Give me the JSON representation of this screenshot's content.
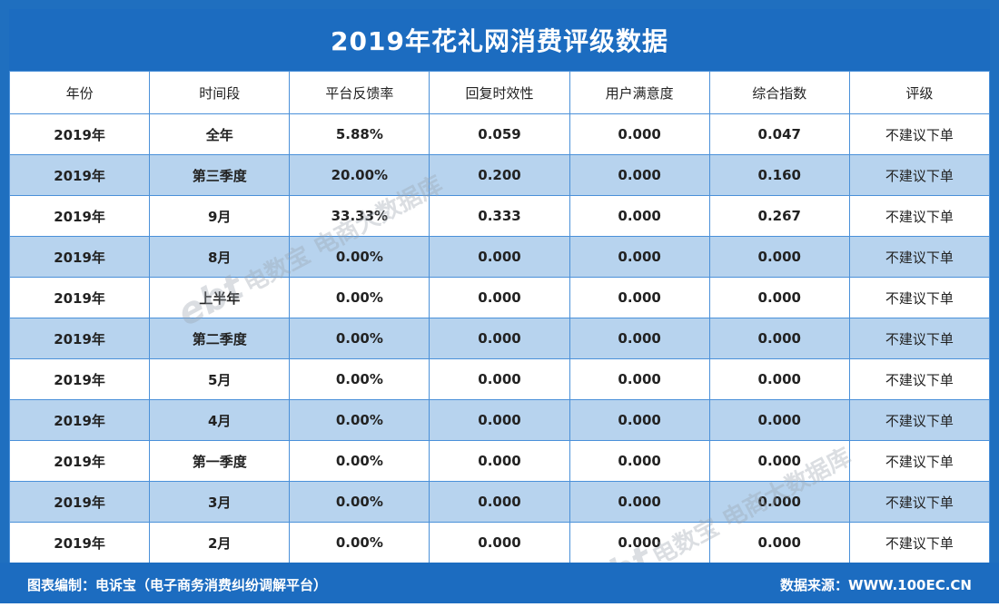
{
  "title": "2019年花礼网消费评级数据",
  "columns": [
    "年份",
    "时间段",
    "平台反馈率",
    "回复时效性",
    "用户满意度",
    "综合指数",
    "评级"
  ],
  "rows": [
    [
      "2019年",
      "全年",
      "5.88%",
      "0.059",
      "0.000",
      "0.047",
      "不建议下单"
    ],
    [
      "2019年",
      "第三季度",
      "20.00%",
      "0.200",
      "0.000",
      "0.160",
      "不建议下单"
    ],
    [
      "2019年",
      "9月",
      "33.33%",
      "0.333",
      "0.000",
      "0.267",
      "不建议下单"
    ],
    [
      "2019年",
      "8月",
      "0.00%",
      "0.000",
      "0.000",
      "0.000",
      "不建议下单"
    ],
    [
      "2019年",
      "上半年",
      "0.00%",
      "0.000",
      "0.000",
      "0.000",
      "不建议下单"
    ],
    [
      "2019年",
      "第二季度",
      "0.00%",
      "0.000",
      "0.000",
      "0.000",
      "不建议下单"
    ],
    [
      "2019年",
      "5月",
      "0.00%",
      "0.000",
      "0.000",
      "0.000",
      "不建议下单"
    ],
    [
      "2019年",
      "4月",
      "0.00%",
      "0.000",
      "0.000",
      "0.000",
      "不建议下单"
    ],
    [
      "2019年",
      "第一季度",
      "0.00%",
      "0.000",
      "0.000",
      "0.000",
      "不建议下单"
    ],
    [
      "2019年",
      "3月",
      "0.00%",
      "0.000",
      "0.000",
      "0.000",
      "不建议下单"
    ],
    [
      "2019年",
      "2月",
      "0.00%",
      "0.000",
      "0.000",
      "0.000",
      "不建议下单"
    ]
  ],
  "footer": {
    "left": "图表编制：电诉宝（电子商务消费纠纷调解平台）",
    "right": "数据来源：WWW.100EC.CN"
  },
  "watermark": {
    "logo": "ebt",
    "text": "电数宝 电商大数据库"
  },
  "colors": {
    "header_blue": "#1c6cc0",
    "row_alt": "#b7d3ee",
    "border": "#4a90d9"
  }
}
